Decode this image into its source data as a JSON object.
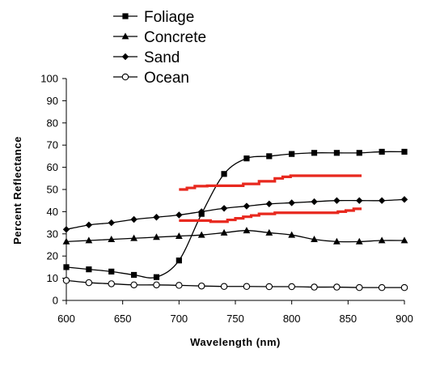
{
  "chart_data": {
    "type": "line",
    "xlabel": "Wavelength (nm)",
    "ylabel": "Percent Reflectance",
    "xlim": [
      600,
      900
    ],
    "ylim": [
      0,
      100
    ],
    "x_ticks": [
      "600",
      "650",
      "700",
      "750",
      "800",
      "850",
      "900"
    ],
    "y_ticks": [
      "0",
      "10",
      "20",
      "30",
      "40",
      "50",
      "60",
      "70",
      "80",
      "90",
      "100"
    ],
    "grid": false,
    "legend_position": "top-center",
    "series": [
      {
        "name": "Foliage",
        "marker": "square",
        "color": "#000000",
        "x": [
          600,
          620,
          640,
          660,
          680,
          700,
          720,
          740,
          760,
          780,
          800,
          820,
          840,
          860,
          880,
          900
        ],
        "y": [
          15,
          14,
          13,
          11.5,
          10.5,
          18,
          39,
          57,
          64,
          65,
          66,
          66.5,
          66.5,
          66.5,
          67,
          67
        ]
      },
      {
        "name": "Concrete",
        "marker": "triangle",
        "color": "#000000",
        "x": [
          600,
          620,
          640,
          660,
          680,
          700,
          720,
          740,
          760,
          780,
          800,
          820,
          840,
          860,
          880,
          900
        ],
        "y": [
          26.5,
          27,
          27.5,
          28,
          28.5,
          29,
          29.5,
          30.5,
          31.5,
          30.5,
          29.5,
          27.5,
          26.5,
          26.5,
          27,
          27
        ]
      },
      {
        "name": "Sand",
        "marker": "diamond",
        "color": "#000000",
        "x": [
          600,
          620,
          640,
          660,
          680,
          700,
          720,
          740,
          760,
          780,
          800,
          820,
          840,
          860,
          880,
          900
        ],
        "y": [
          32,
          34,
          35,
          36.5,
          37.5,
          38.5,
          40,
          41.5,
          42.5,
          43.5,
          44,
          44.5,
          45,
          45,
          45,
          45.5
        ]
      },
      {
        "name": "Ocean",
        "marker": "circle",
        "color": "#000000",
        "x": [
          600,
          620,
          640,
          660,
          680,
          700,
          720,
          740,
          760,
          780,
          800,
          820,
          840,
          860,
          880,
          900
        ],
        "y": [
          9,
          8,
          7.5,
          7,
          7,
          6.8,
          6.5,
          6.3,
          6.3,
          6.2,
          6.2,
          6,
          6,
          5.8,
          5.8,
          5.8
        ]
      }
    ],
    "overlays": [
      {
        "color": "#e8281e",
        "x": [
          700,
          707,
          707,
          714,
          714,
          725,
          725,
          757,
          757,
          771,
          771,
          785,
          785,
          792,
          792,
          799,
          799,
          862
        ],
        "y": [
          50,
          50,
          50.7,
          50.7,
          51.5,
          51.5,
          51.7,
          51.7,
          52.5,
          52.5,
          53.7,
          53.7,
          55,
          55,
          55.7,
          55.7,
          56.2,
          56.2
        ]
      },
      {
        "color": "#e8281e",
        "x": [
          700,
          728,
          728,
          743,
          743,
          750,
          750,
          757,
          757,
          764,
          764,
          771,
          771,
          785,
          785,
          841,
          841,
          848,
          848,
          855,
          855,
          862
        ],
        "y": [
          36,
          36,
          35.5,
          35.5,
          36.3,
          36.3,
          37,
          37,
          37.7,
          37.7,
          38.3,
          38.3,
          39,
          39,
          39.5,
          39.5,
          40,
          40,
          40.5,
          40.5,
          41.3,
          41.3
        ]
      }
    ]
  }
}
